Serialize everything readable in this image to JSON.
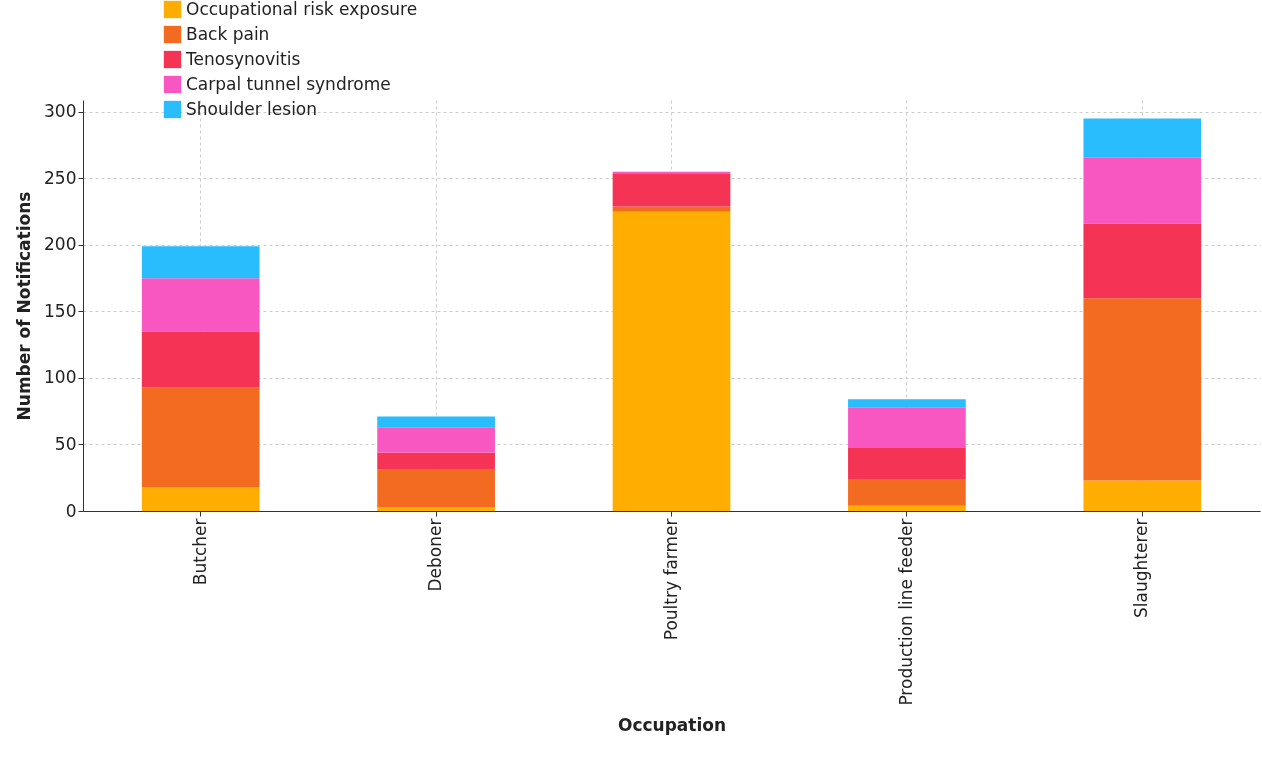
{
  "chart_data": {
    "type": "bar",
    "stacked": true,
    "xlabel": "Occupation",
    "ylabel": "Number of Notifications",
    "categories": [
      "Butcher",
      "Deboner",
      "Poultry farmer",
      "Production line feeder",
      "Slaughterer"
    ],
    "series": [
      {
        "name": "Occupational risk exposure",
        "color": "#ffad00",
        "values": [
          18,
          3,
          225,
          4,
          23
        ]
      },
      {
        "name": "Back pain",
        "color": "#f26b21",
        "values": [
          75,
          28,
          4,
          20,
          137
        ]
      },
      {
        "name": "Tenosynovitis",
        "color": "#f53354",
        "values": [
          42,
          13,
          25,
          24,
          56
        ]
      },
      {
        "name": "Carpal tunnel syndrome",
        "color": "#f857c1",
        "values": [
          40,
          19,
          1,
          30,
          50
        ]
      },
      {
        "name": "Shoulder lesion",
        "color": "#29bdfd",
        "values": [
          24,
          8,
          0,
          6,
          29
        ]
      }
    ],
    "ylim": [
      0,
      309
    ],
    "yticks": [
      0,
      50,
      100,
      150,
      200,
      250,
      300
    ],
    "grid": true,
    "legend": "top left"
  }
}
